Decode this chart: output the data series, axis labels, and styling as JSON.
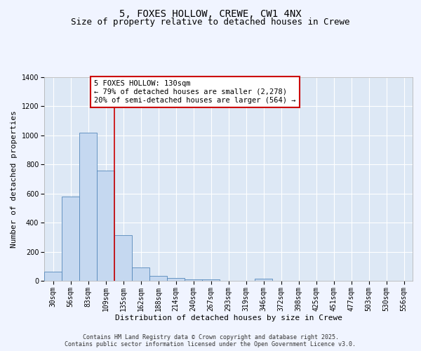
{
  "title": "5, FOXES HOLLOW, CREWE, CW1 4NX",
  "subtitle": "Size of property relative to detached houses in Crewe",
  "xlabel": "Distribution of detached houses by size in Crewe",
  "ylabel": "Number of detached properties",
  "categories": [
    "30sqm",
    "56sqm",
    "83sqm",
    "109sqm",
    "135sqm",
    "162sqm",
    "188sqm",
    "214sqm",
    "240sqm",
    "267sqm",
    "293sqm",
    "319sqm",
    "346sqm",
    "372sqm",
    "398sqm",
    "425sqm",
    "451sqm",
    "477sqm",
    "503sqm",
    "530sqm",
    "556sqm"
  ],
  "values": [
    65,
    580,
    1020,
    760,
    315,
    90,
    35,
    20,
    12,
    10,
    0,
    0,
    15,
    0,
    0,
    0,
    0,
    0,
    0,
    0,
    0
  ],
  "bar_color": "#c5d8f0",
  "bar_edge_color": "#5588bb",
  "background_color": "#dde8f5",
  "grid_color": "#ffffff",
  "annotation_text": "5 FOXES HOLLOW: 130sqm\n← 79% of detached houses are smaller (2,278)\n20% of semi-detached houses are larger (564) →",
  "annotation_box_color": "#ffffff",
  "annotation_box_edge_color": "#cc0000",
  "marker_line_color": "#cc0000",
  "marker_line_index": 4,
  "ylim": [
    0,
    1400
  ],
  "yticks": [
    0,
    200,
    400,
    600,
    800,
    1000,
    1200,
    1400
  ],
  "footer_text": "Contains HM Land Registry data © Crown copyright and database right 2025.\nContains public sector information licensed under the Open Government Licence v3.0.",
  "fig_facecolor": "#f0f4ff",
  "title_fontsize": 10,
  "subtitle_fontsize": 9,
  "ylabel_fontsize": 8,
  "xlabel_fontsize": 8,
  "tick_fontsize": 7,
  "annotation_fontsize": 7.5,
  "footer_fontsize": 6
}
